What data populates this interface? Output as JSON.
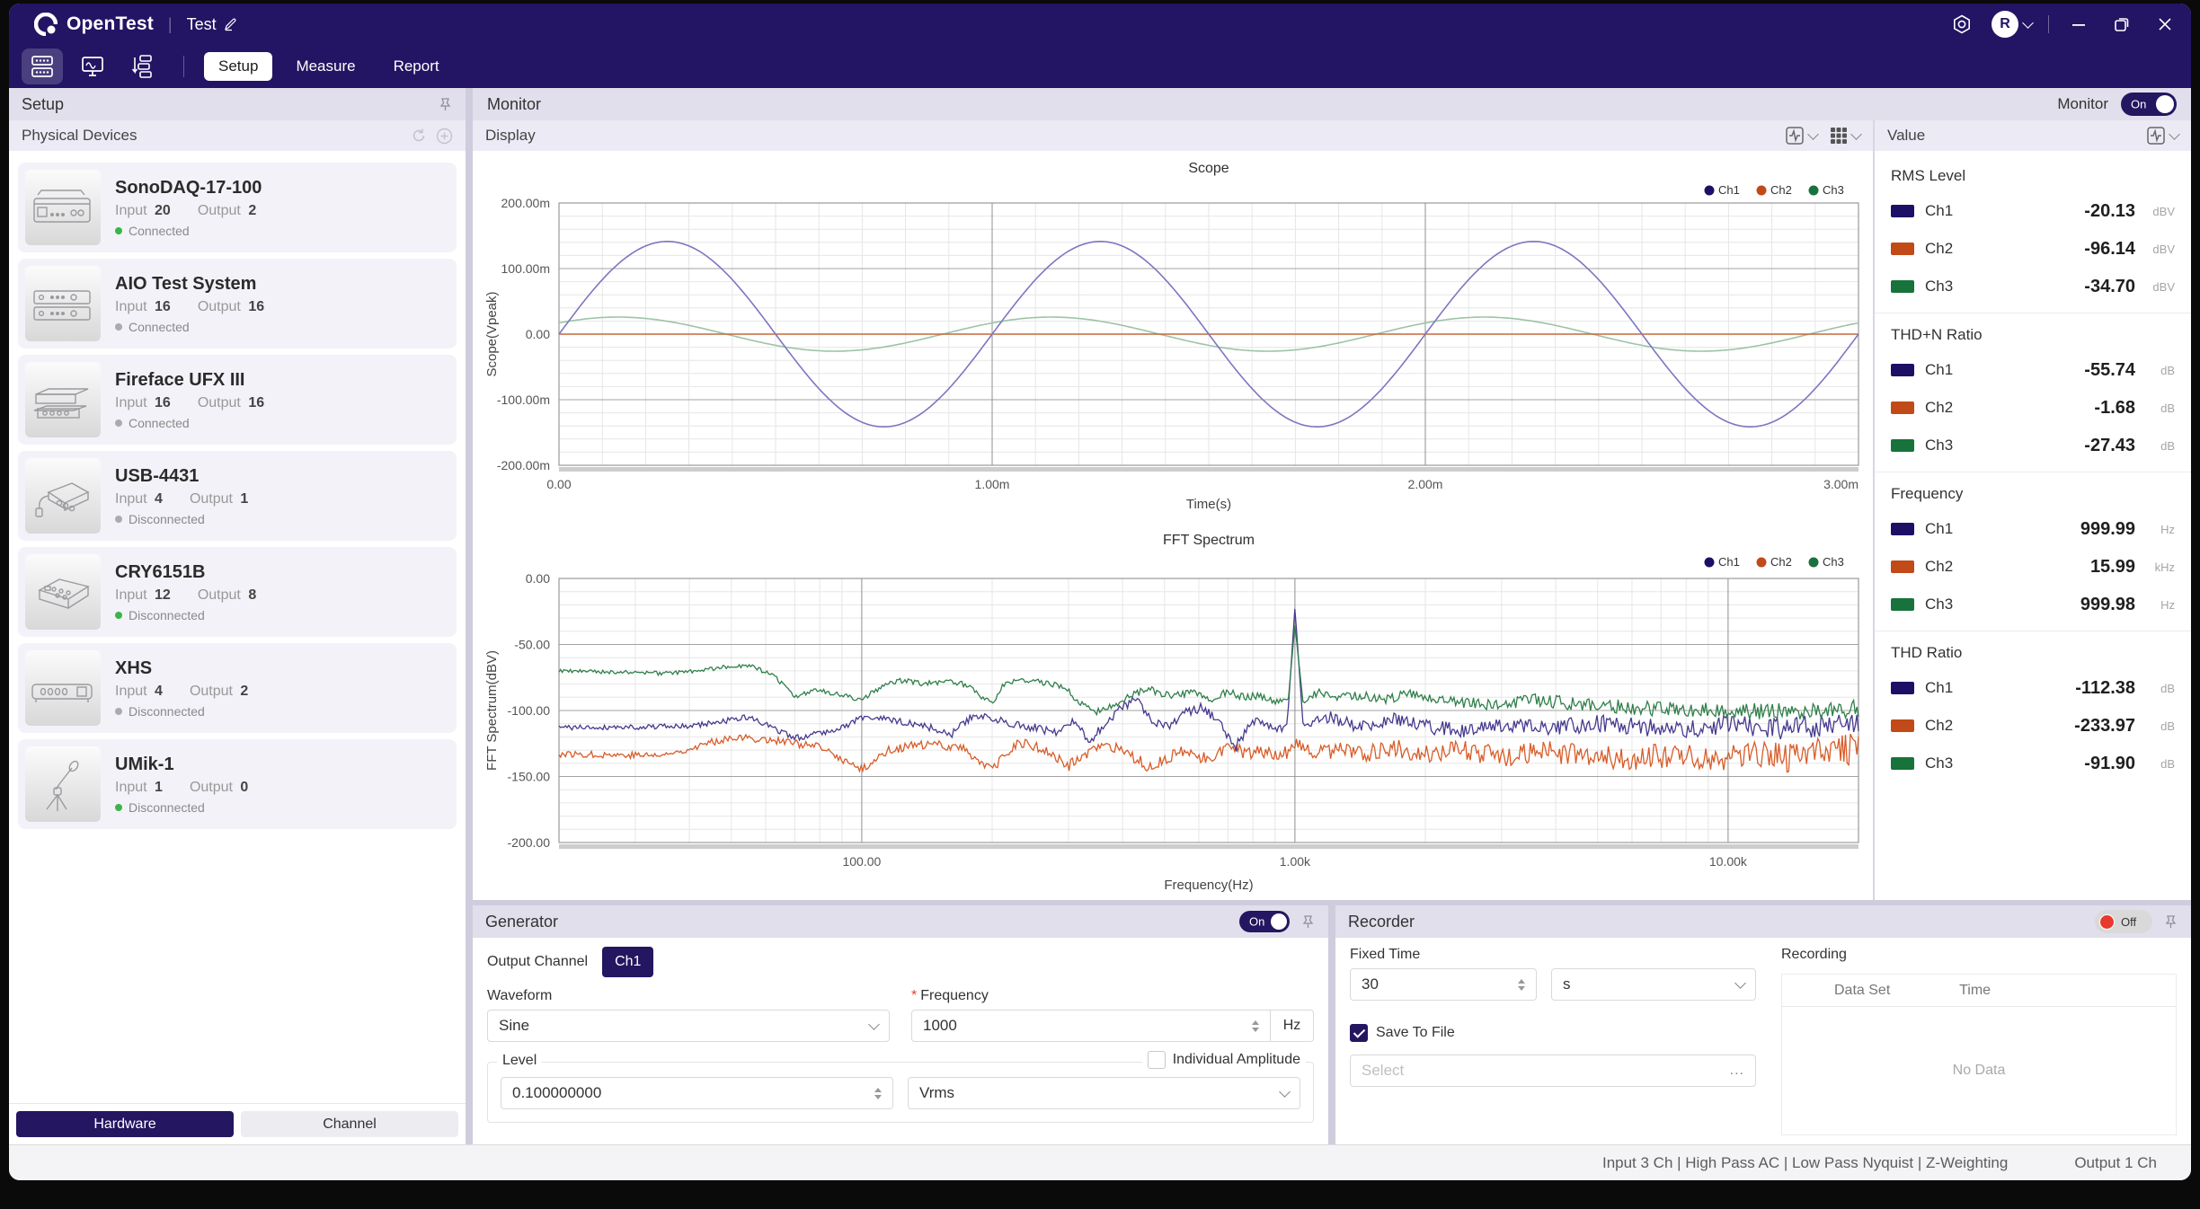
{
  "titlebar": {
    "product": "OpenTest",
    "doc": "Test",
    "user_initial": "R"
  },
  "toolbar": {
    "tabs": [
      {
        "label": "Setup",
        "active": true
      },
      {
        "label": "Measure",
        "active": false
      },
      {
        "label": "Report",
        "active": false
      }
    ]
  },
  "sidebar": {
    "header": "Setup",
    "section": "Physical Devices",
    "devices": [
      {
        "name": "SonoDAQ-17-100",
        "input_label": "Input",
        "input": "20",
        "output_label": "Output",
        "output": "2",
        "status": "Connected",
        "dot": "green",
        "thumb": "rack"
      },
      {
        "name": "AIO Test System",
        "input_label": "Input",
        "input": "16",
        "output_label": "Output",
        "output": "16",
        "status": "Connected",
        "dot": "gray",
        "thumb": "rack2"
      },
      {
        "name": "Fireface UFX III",
        "input_label": "Input",
        "input": "16",
        "output_label": "Output",
        "output": "16",
        "status": "Connected",
        "dot": "gray",
        "thumb": "stack"
      },
      {
        "name": "USB-4431",
        "input_label": "Input",
        "input": "4",
        "output_label": "Output",
        "output": "1",
        "status": "Disconnected",
        "dot": "gray",
        "thumb": "usb"
      },
      {
        "name": "CRY6151B",
        "input_label": "Input",
        "input": "12",
        "output_label": "Output",
        "output": "8",
        "status": "Disconnected",
        "dot": "green",
        "thumb": "bench"
      },
      {
        "name": "XHS",
        "input_label": "Input",
        "input": "4",
        "output_label": "Output",
        "output": "2",
        "status": "Disconnected",
        "dot": "gray",
        "thumb": "bar"
      },
      {
        "name": "UMik-1",
        "input_label": "Input",
        "input": "1",
        "output_label": "Output",
        "output": "0",
        "status": "Disconnected",
        "dot": "green",
        "thumb": "mic"
      }
    ],
    "footer_tabs": [
      {
        "label": "Hardware",
        "active": true
      },
      {
        "label": "Channel",
        "active": false
      }
    ]
  },
  "monitor": {
    "header": "Monitor",
    "toggle_label": "Monitor",
    "toggle_state": "On",
    "display_header": "Display"
  },
  "value_panel": {
    "header": "Value",
    "sections": [
      {
        "title": "RMS Level",
        "rows": [
          [
            "Ch1",
            "-20.13",
            "dBV"
          ],
          [
            "Ch2",
            "-96.14",
            "dBV"
          ],
          [
            "Ch3",
            "-34.70",
            "dBV"
          ]
        ]
      },
      {
        "title": "THD+N Ratio",
        "rows": [
          [
            "Ch1",
            "-55.74",
            "dB"
          ],
          [
            "Ch2",
            "-1.68",
            "dB"
          ],
          [
            "Ch3",
            "-27.43",
            "dB"
          ]
        ]
      },
      {
        "title": "Frequency",
        "rows": [
          [
            "Ch1",
            "999.99",
            "Hz"
          ],
          [
            "Ch2",
            "15.99",
            "kHz"
          ],
          [
            "Ch3",
            "999.98",
            "Hz"
          ]
        ]
      },
      {
        "title": "THD Ratio",
        "rows": [
          [
            "Ch1",
            "-112.38",
            "dB"
          ],
          [
            "Ch2",
            "-233.97",
            "dB"
          ],
          [
            "Ch3",
            "-91.90",
            "dB"
          ]
        ]
      }
    ]
  },
  "generator": {
    "header": "Generator",
    "toggle_state": "On",
    "output_channel_label": "Output Channel",
    "output_channel": "Ch1",
    "waveform_label": "Waveform",
    "waveform_value": "Sine",
    "frequency_label": "Frequency",
    "frequency_value": "1000",
    "frequency_unit": "Hz",
    "level_label": "Level",
    "level_value": "0.100000000",
    "level_unit": "Vrms",
    "individual_amplitude_label": "Individual Amplitude",
    "individual_amplitude_checked": false
  },
  "recorder": {
    "header": "Recorder",
    "toggle_state": "Off",
    "fixed_time_label": "Fixed Time",
    "fixed_time_value": "30",
    "fixed_time_unit": "s",
    "save_to_file_label": "Save To File",
    "save_to_file_checked": true,
    "file_placeholder": "Select",
    "more_button": "...",
    "recording_label": "Recording",
    "table_headers": [
      "Data Set",
      "Time"
    ],
    "empty_text": "No Data"
  },
  "statusbar": {
    "left": "Input  3 Ch | High Pass  AC | Low Pass  Nyquist |  Z-Weighting",
    "right": "Output  1 Ch"
  },
  "channels": [
    {
      "id": "Ch1",
      "dot": "#1c1066",
      "scope_line": "#7d76c0",
      "fft_line": "#453a8e"
    },
    {
      "id": "Ch2",
      "dot": "#c14a18",
      "scope_line": "#c3683f",
      "fft_line": "#d85c28"
    },
    {
      "id": "Ch3",
      "dot": "#17733b",
      "scope_line": "#9cc3a8",
      "fft_line": "#2f7f4a"
    }
  ],
  "theme": {
    "accent": "#231563",
    "header_bar": "#e2dfec",
    "subheader_bar": "#eceaf5",
    "connected_green": "#3bb54a",
    "disconnected_gray": "#ababab",
    "record_red": "#e8392e"
  },
  "chart_data": [
    {
      "type": "line",
      "title": "Scope",
      "xlabel": "Time(s)",
      "ylabel": "Scope(Vpeak)",
      "x_scale": "linear",
      "xlim_s": [
        0,
        0.003
      ],
      "x_ticks": [
        {
          "v": 0,
          "label": "0.00"
        },
        {
          "v": 0.001,
          "label": "1.00m"
        },
        {
          "v": 0.002,
          "label": "2.00m"
        },
        {
          "v": 0.003,
          "label": "3.00m"
        }
      ],
      "ylim_v": [
        -0.2,
        0.2
      ],
      "y_ticks": [
        {
          "v": 0.2,
          "label": "200.00m"
        },
        {
          "v": 0.1,
          "label": "100.00m"
        },
        {
          "v": 0,
          "label": "0.00"
        },
        {
          "v": -0.1,
          "label": "-100.00m"
        },
        {
          "v": -0.2,
          "label": "-200.00m"
        }
      ],
      "x_minor_step": 0.0001,
      "y_minor_step": 0.02,
      "legend": [
        "Ch1",
        "Ch2",
        "Ch3"
      ],
      "series": [
        {
          "name": "Ch3",
          "waveform": "sine",
          "amplitude_vpeak": 0.026,
          "frequency_hz": 1000,
          "phase_deg": 41
        },
        {
          "name": "Ch2",
          "waveform": "flat",
          "offset_v": 0.0
        },
        {
          "name": "Ch1",
          "waveform": "sine",
          "amplitude_vpeak": 0.1414,
          "frequency_hz": 1000,
          "phase_deg": 0
        }
      ]
    },
    {
      "type": "line",
      "title": "FFT Spectrum",
      "xlabel": "Frequency(Hz)",
      "ylabel": "FFT Spectrum(dBV)",
      "x_scale": "log",
      "xlim_hz": [
        20,
        20000
      ],
      "x_ticks": [
        {
          "v": 100,
          "label": "100.00"
        },
        {
          "v": 1000,
          "label": "1.00k"
        },
        {
          "v": 10000,
          "label": "10.00k"
        }
      ],
      "ylim_db": [
        -200,
        0
      ],
      "y_ticks": [
        {
          "v": 0,
          "label": "0.00"
        },
        {
          "v": -50,
          "label": "-50.00"
        },
        {
          "v": -100,
          "label": "-100.00"
        },
        {
          "v": -150,
          "label": "-150.00"
        },
        {
          "v": -200,
          "label": "-200.00"
        }
      ],
      "y_minor_step": 10,
      "legend": [
        "Ch1",
        "Ch2",
        "Ch3"
      ],
      "series": [
        {
          "name": "Ch2",
          "noise_db_low": 2.5,
          "noise_db_high": 12,
          "seed": 77,
          "anchors_hz_db": [
            [
              20,
              -133
            ],
            [
              35,
              -134
            ],
            [
              50,
              -120
            ],
            [
              65,
              -123
            ],
            [
              80,
              -128
            ],
            [
              100,
              -145
            ],
            [
              115,
              -130
            ],
            [
              130,
              -127
            ],
            [
              150,
              -126
            ],
            [
              170,
              -128
            ],
            [
              200,
              -145
            ],
            [
              230,
              -124
            ],
            [
              260,
              -129
            ],
            [
              300,
              -142
            ],
            [
              340,
              -130
            ],
            [
              380,
              -128
            ],
            [
              420,
              -136
            ],
            [
              460,
              -142
            ],
            [
              500,
              -137
            ],
            [
              560,
              -131
            ],
            [
              620,
              -137
            ],
            [
              700,
              -127
            ],
            [
              780,
              -134
            ],
            [
              860,
              -130
            ],
            [
              940,
              -133
            ],
            [
              1000,
              -126
            ],
            [
              1100,
              -134
            ],
            [
              1250,
              -129
            ],
            [
              1450,
              -133
            ],
            [
              1700,
              -128
            ],
            [
              2000,
              -133
            ],
            [
              2400,
              -130
            ],
            [
              3000,
              -135
            ],
            [
              3800,
              -131
            ],
            [
              4800,
              -135
            ],
            [
              6000,
              -137
            ],
            [
              7500,
              -133
            ],
            [
              9000,
              -137
            ],
            [
              11000,
              -132
            ],
            [
              14000,
              -136
            ],
            [
              17000,
              -131
            ],
            [
              20000,
              -129
            ]
          ]
        },
        {
          "name": "Ch1",
          "noise_db_low": 2,
          "noise_db_high": 9,
          "seed": 41,
          "peak_hz": 1000,
          "anchors_hz_db": [
            [
              20,
              -113
            ],
            [
              40,
              -112
            ],
            [
              55,
              -105
            ],
            [
              70,
              -121
            ],
            [
              90,
              -113
            ],
            [
              100,
              -105
            ],
            [
              115,
              -107
            ],
            [
              130,
              -110
            ],
            [
              145,
              -113
            ],
            [
              160,
              -119
            ],
            [
              180,
              -104
            ],
            [
              200,
              -106
            ],
            [
              225,
              -110
            ],
            [
              250,
              -113
            ],
            [
              280,
              -117
            ],
            [
              310,
              -108
            ],
            [
              335,
              -124
            ],
            [
              360,
              -112
            ],
            [
              390,
              -100
            ],
            [
              430,
              -92
            ],
            [
              470,
              -108
            ],
            [
              520,
              -112
            ],
            [
              570,
              -100
            ],
            [
              620,
              -98
            ],
            [
              680,
              -113
            ],
            [
              730,
              -128
            ],
            [
              800,
              -108
            ],
            [
              860,
              -112
            ],
            [
              920,
              -115
            ],
            [
              960,
              -110
            ],
            [
              1000,
              -22
            ],
            [
              1045,
              -112
            ],
            [
              1100,
              -108
            ],
            [
              1200,
              -105
            ],
            [
              1400,
              -112
            ],
            [
              1700,
              -107
            ],
            [
              2000,
              -112
            ],
            [
              2500,
              -116
            ],
            [
              3000,
              -110
            ],
            [
              4000,
              -113
            ],
            [
              5000,
              -110
            ],
            [
              6500,
              -113
            ],
            [
              8000,
              -115
            ],
            [
              10000,
              -111
            ],
            [
              13000,
              -114
            ],
            [
              16000,
              -112
            ],
            [
              20000,
              -110
            ]
          ]
        },
        {
          "name": "Ch3",
          "noise_db_low": 1.5,
          "noise_db_high": 7,
          "seed": 9,
          "peak_hz": 1000,
          "anchors_hz_db": [
            [
              20,
              -70
            ],
            [
              28,
              -71
            ],
            [
              36,
              -72
            ],
            [
              44,
              -69
            ],
            [
              50,
              -66
            ],
            [
              56,
              -67
            ],
            [
              63,
              -74
            ],
            [
              70,
              -90
            ],
            [
              78,
              -84
            ],
            [
              86,
              -87
            ],
            [
              100,
              -92
            ],
            [
              112,
              -81
            ],
            [
              125,
              -77
            ],
            [
              140,
              -80
            ],
            [
              155,
              -78
            ],
            [
              170,
              -79
            ],
            [
              185,
              -87
            ],
            [
              200,
              -95
            ],
            [
              215,
              -78
            ],
            [
              235,
              -77
            ],
            [
              260,
              -79
            ],
            [
              290,
              -81
            ],
            [
              320,
              -95
            ],
            [
              350,
              -101
            ],
            [
              380,
              -97
            ],
            [
              420,
              -88
            ],
            [
              460,
              -84
            ],
            [
              520,
              -89
            ],
            [
              580,
              -87
            ],
            [
              640,
              -92
            ],
            [
              700,
              -86
            ],
            [
              760,
              -90
            ],
            [
              820,
              -88
            ],
            [
              880,
              -93
            ],
            [
              930,
              -91
            ],
            [
              965,
              -92
            ],
            [
              1000,
              -35
            ],
            [
              1045,
              -95
            ],
            [
              1120,
              -87
            ],
            [
              1250,
              -90
            ],
            [
              1400,
              -89
            ],
            [
              1600,
              -91
            ],
            [
              1900,
              -88
            ],
            [
              2300,
              -93
            ],
            [
              2800,
              -96
            ],
            [
              3500,
              -92
            ],
            [
              4500,
              -95
            ],
            [
              5500,
              -97
            ],
            [
              7000,
              -99
            ],
            [
              8500,
              -100
            ],
            [
              10000,
              -99
            ],
            [
              12500,
              -101
            ],
            [
              16000,
              -100
            ],
            [
              20000,
              -98
            ]
          ]
        }
      ]
    }
  ]
}
